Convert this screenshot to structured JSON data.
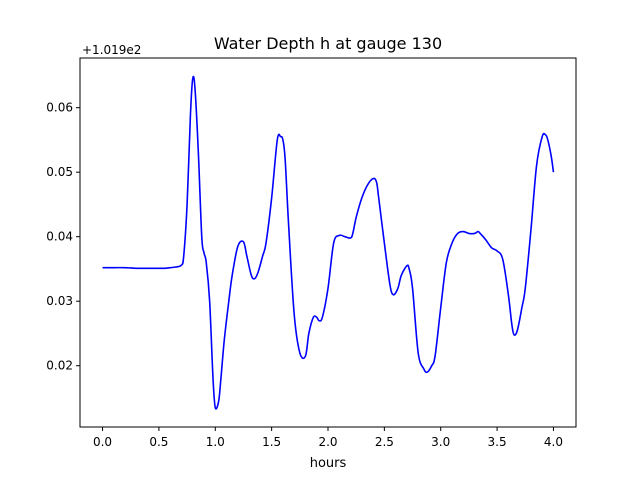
{
  "chart_data": {
    "type": "line",
    "title": "Water Depth h at gauge 130",
    "xlabel": "hours",
    "ylabel": "",
    "offset_label": "+1.019e2",
    "xlim": [
      -0.2,
      4.2
    ],
    "ylim": [
      0.0105,
      0.0677
    ],
    "x_ticks": [
      0.0,
      0.5,
      1.0,
      1.5,
      2.0,
      2.5,
      3.0,
      3.5,
      4.0
    ],
    "x_tick_labels": [
      "0.0",
      "0.5",
      "1.0",
      "1.5",
      "2.0",
      "2.5",
      "3.0",
      "3.5",
      "4.0"
    ],
    "y_ticks": [
      0.02,
      0.03,
      0.04,
      0.05,
      0.06
    ],
    "y_tick_labels": [
      "0.02",
      "0.03",
      "0.04",
      "0.05",
      "0.06"
    ],
    "grid": false,
    "legend": "none",
    "series": [
      {
        "color": "#0000ff",
        "x": [
          0.0,
          0.1,
          0.2,
          0.3,
          0.4,
          0.5,
          0.55,
          0.6,
          0.65,
          0.7,
          0.72,
          0.75,
          0.78,
          0.8,
          0.82,
          0.85,
          0.88,
          0.9,
          0.92,
          0.95,
          0.98,
          1.0,
          1.03,
          1.05,
          1.08,
          1.12,
          1.15,
          1.2,
          1.25,
          1.28,
          1.32,
          1.35,
          1.38,
          1.42,
          1.45,
          1.5,
          1.55,
          1.58,
          1.6,
          1.62,
          1.65,
          1.7,
          1.75,
          1.8,
          1.83,
          1.87,
          1.9,
          1.92,
          1.95,
          2.0,
          2.05,
          2.1,
          2.15,
          2.2,
          2.22,
          2.25,
          2.3,
          2.35,
          2.4,
          2.43,
          2.45,
          2.5,
          2.55,
          2.58,
          2.62,
          2.65,
          2.7,
          2.72,
          2.75,
          2.8,
          2.85,
          2.88,
          2.92,
          2.95,
          3.0,
          3.05,
          3.1,
          3.15,
          3.2,
          3.25,
          3.3,
          3.33,
          3.35,
          3.4,
          3.45,
          3.5,
          3.55,
          3.6,
          3.63,
          3.65,
          3.68,
          3.72,
          3.75,
          3.8,
          3.85,
          3.9,
          3.93,
          3.95,
          3.98,
          4.0
        ],
        "y": [
          0.0352,
          0.0352,
          0.0352,
          0.0351,
          0.0351,
          0.0351,
          0.0351,
          0.0352,
          0.0353,
          0.0356,
          0.037,
          0.045,
          0.059,
          0.0645,
          0.063,
          0.053,
          0.04,
          0.0375,
          0.036,
          0.03,
          0.018,
          0.0135,
          0.0145,
          0.018,
          0.024,
          0.03,
          0.034,
          0.0385,
          0.0392,
          0.037,
          0.034,
          0.0335,
          0.0345,
          0.037,
          0.039,
          0.046,
          0.055,
          0.0555,
          0.055,
          0.052,
          0.042,
          0.028,
          0.022,
          0.0215,
          0.025,
          0.0275,
          0.0275,
          0.027,
          0.0275,
          0.032,
          0.039,
          0.0402,
          0.04,
          0.0398,
          0.0405,
          0.043,
          0.046,
          0.048,
          0.049,
          0.0485,
          0.046,
          0.039,
          0.0325,
          0.031,
          0.032,
          0.034,
          0.0355,
          0.035,
          0.032,
          0.022,
          0.0195,
          0.019,
          0.02,
          0.0215,
          0.029,
          0.036,
          0.039,
          0.0405,
          0.0408,
          0.0405,
          0.0405,
          0.0408,
          0.0405,
          0.0395,
          0.0383,
          0.0378,
          0.0365,
          0.031,
          0.0265,
          0.0248,
          0.0255,
          0.029,
          0.032,
          0.041,
          0.051,
          0.0555,
          0.0558,
          0.055,
          0.0525,
          0.05
        ]
      }
    ]
  }
}
